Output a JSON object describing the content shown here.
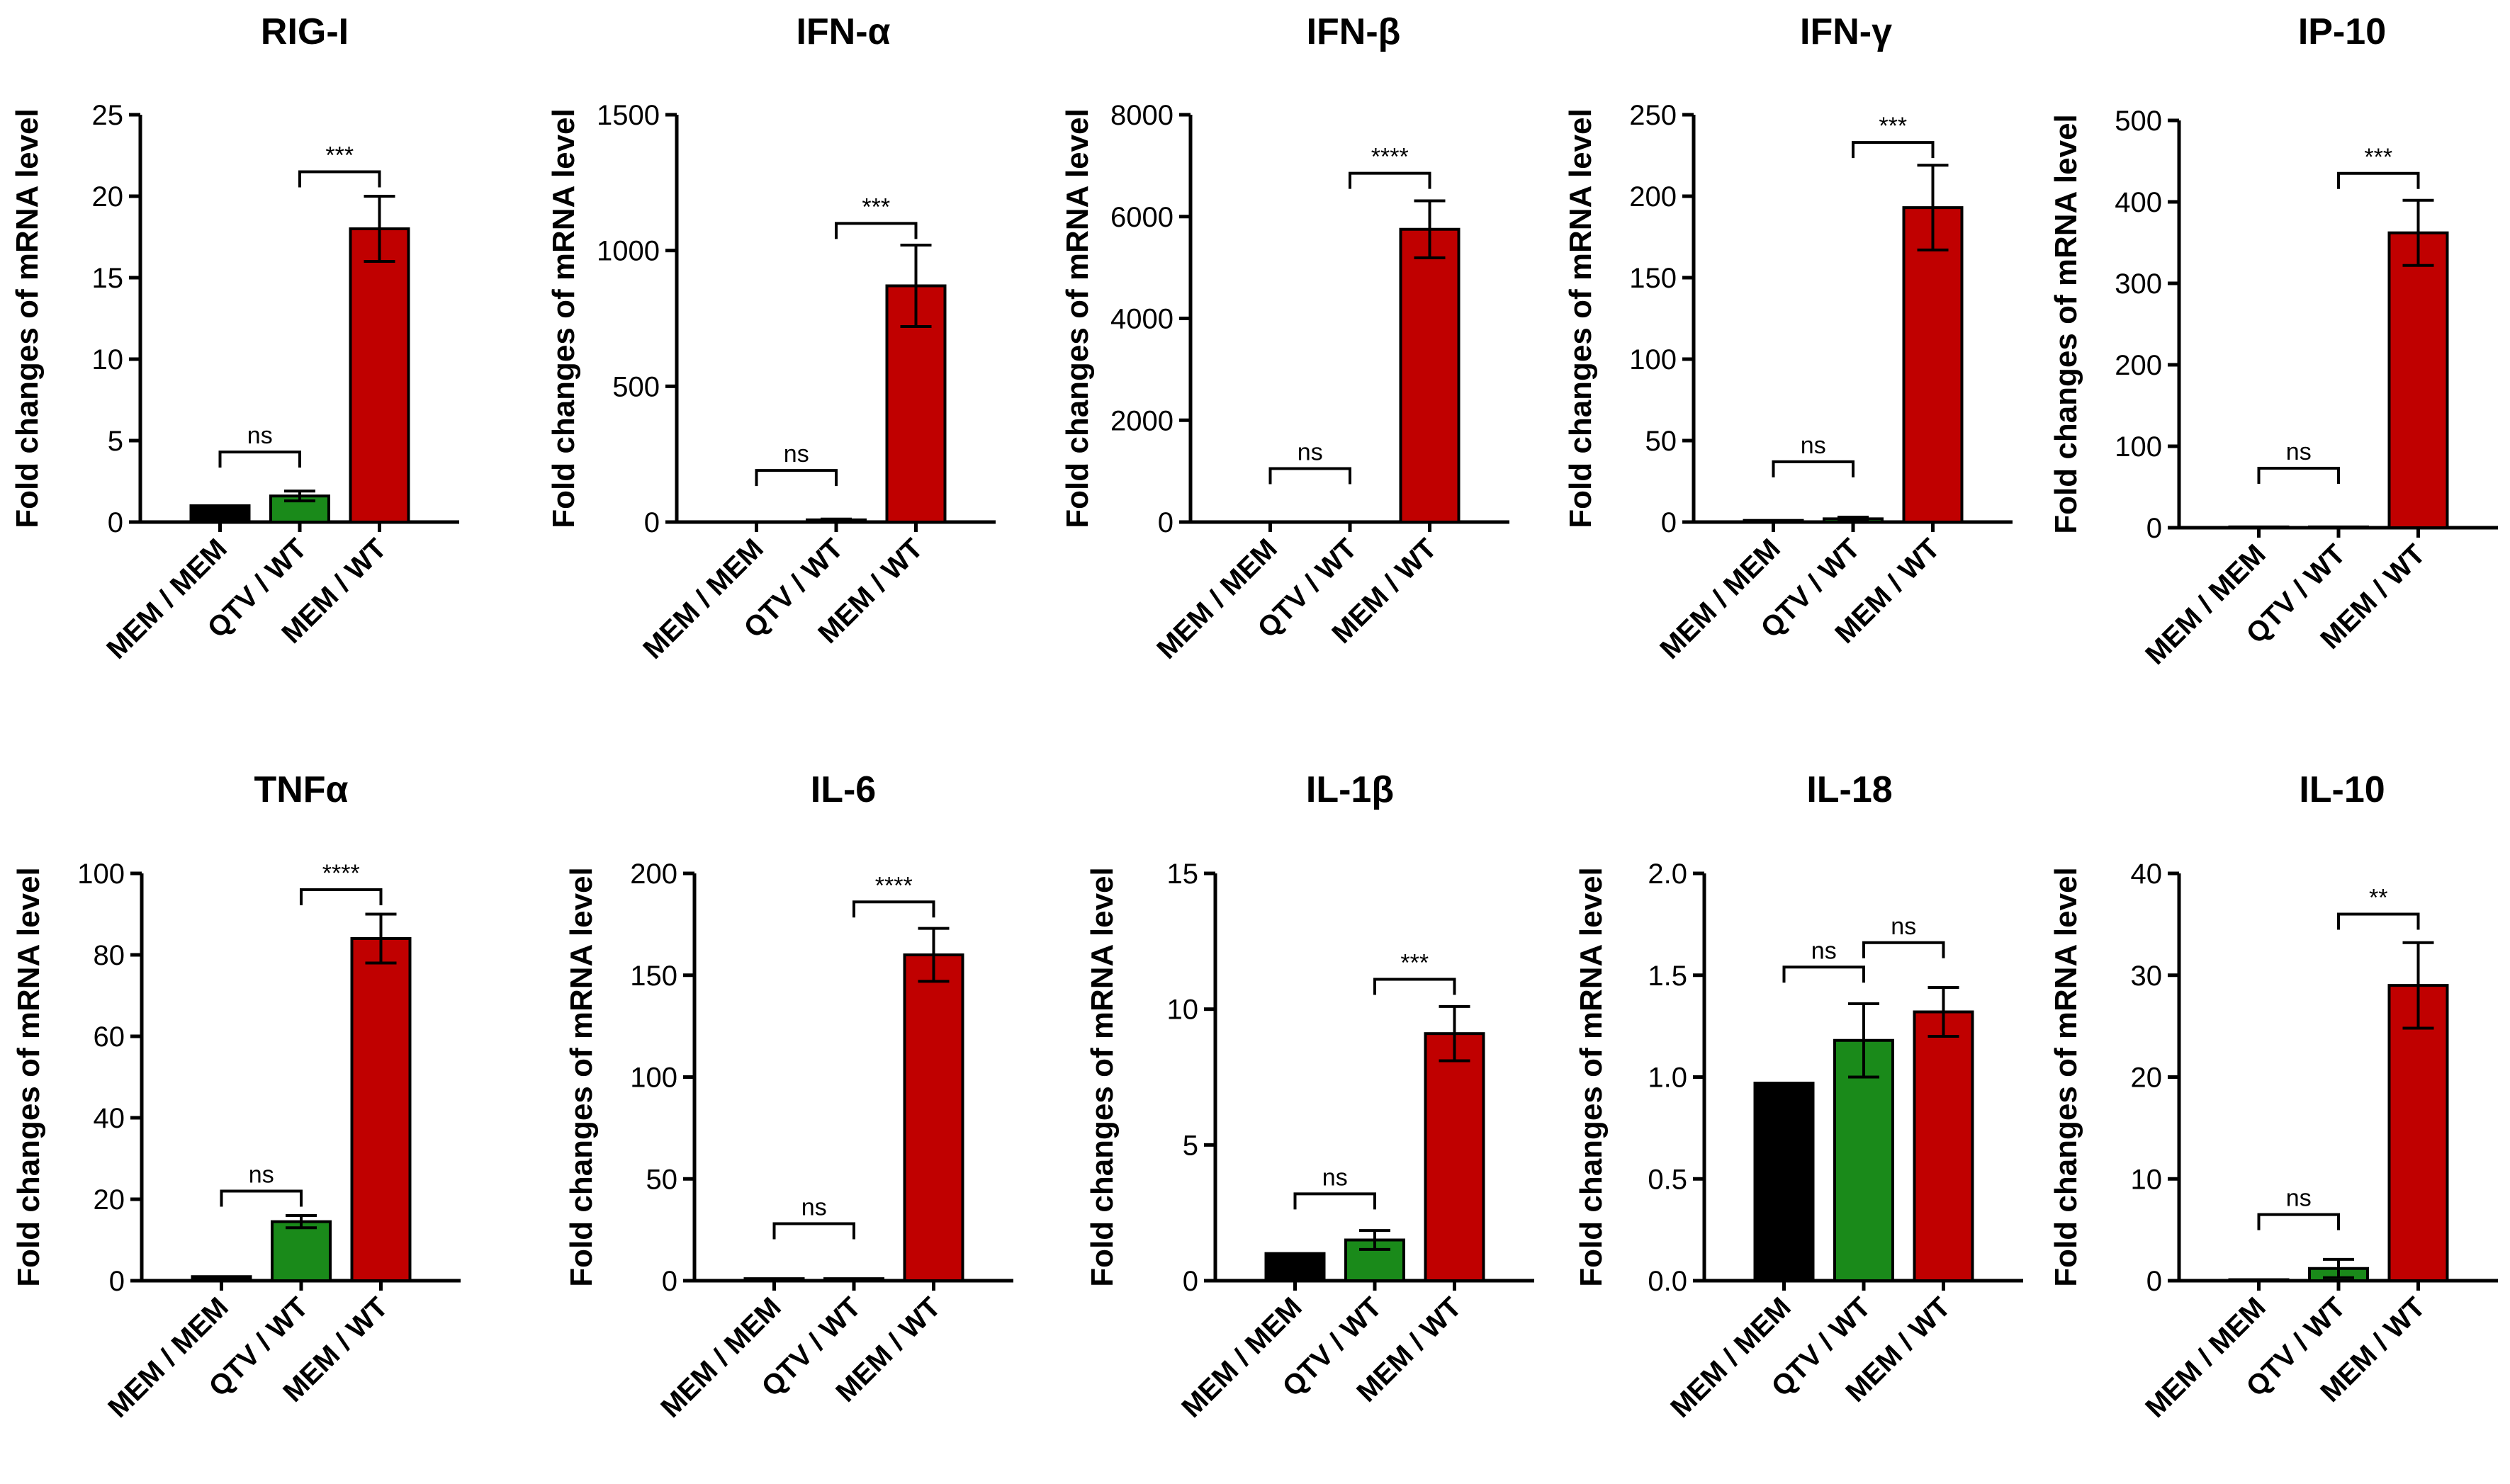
{
  "figure": {
    "colors": {
      "black": "#000000",
      "green": "#1a8a1a",
      "red": "#c00000"
    },
    "chart_data": [
      {
        "type": "bar",
        "title": "RIG-I",
        "ylabel": "Fold changes of mRNA level",
        "categories": [
          "MEM / MEM",
          "QTV / WT",
          "MEM / WT"
        ],
        "values": [
          1.0,
          1.6,
          18.0
        ],
        "errors": [
          0.0,
          0.3,
          2.0
        ],
        "bar_colors": [
          "black",
          "green",
          "red"
        ],
        "ylim": [
          0,
          25
        ],
        "yticks": [
          0,
          5,
          10,
          15,
          20,
          25
        ],
        "ytick_labels": [
          "0",
          "5",
          "10",
          "15",
          "20",
          "25"
        ],
        "significance": [
          {
            "from": 0,
            "to": 1,
            "label": "ns",
            "y": 4.3
          },
          {
            "from": 1,
            "to": 2,
            "label": "***",
            "y": 21.5
          }
        ]
      },
      {
        "type": "bar",
        "title": "IFN-α",
        "ylabel": "Fold changes of mRNA level",
        "categories": [
          "MEM / MEM",
          "QTV / WT",
          "MEM / WT"
        ],
        "values": [
          1,
          8,
          870
        ],
        "errors": [
          0,
          3,
          150
        ],
        "bar_colors": [
          "black",
          "green",
          "red"
        ],
        "ylim": [
          0,
          1500
        ],
        "yticks": [
          0,
          500,
          1000,
          1500
        ],
        "ytick_labels": [
          "0",
          "500",
          "1000",
          "1500"
        ],
        "significance": [
          {
            "from": 0,
            "to": 1,
            "label": "ns",
            "y": 190
          },
          {
            "from": 1,
            "to": 2,
            "label": "***",
            "y": 1100
          }
        ]
      },
      {
        "type": "bar",
        "title": "IFN-β",
        "ylabel": "Fold changes of mRNA level",
        "categories": [
          "MEM / MEM",
          "QTV / WT",
          "MEM / WT"
        ],
        "values": [
          1,
          5,
          5750
        ],
        "errors": [
          0,
          2,
          560
        ],
        "bar_colors": [
          "black",
          "green",
          "red"
        ],
        "ylim": [
          0,
          8000
        ],
        "yticks": [
          0,
          2000,
          4000,
          6000,
          8000
        ],
        "ytick_labels": [
          "0",
          "2000",
          "4000",
          "6000",
          "8000"
        ],
        "significance": [
          {
            "from": 0,
            "to": 1,
            "label": "ns",
            "y": 1050
          },
          {
            "from": 1,
            "to": 2,
            "label": "****",
            "y": 6850
          }
        ]
      },
      {
        "type": "bar",
        "title": "IFN-γ",
        "ylabel": "Fold changes of mRNA level",
        "categories": [
          "MEM / MEM",
          "QTV / WT",
          "MEM / WT"
        ],
        "values": [
          1,
          2,
          193
        ],
        "errors": [
          0,
          1,
          26
        ],
        "bar_colors": [
          "black",
          "green",
          "red"
        ],
        "ylim": [
          0,
          250
        ],
        "yticks": [
          0,
          50,
          100,
          150,
          200,
          250
        ],
        "ytick_labels": [
          "0",
          "50",
          "100",
          "150",
          "200",
          "250"
        ],
        "significance": [
          {
            "from": 0,
            "to": 1,
            "label": "ns",
            "y": 37
          },
          {
            "from": 1,
            "to": 2,
            "label": "***",
            "y": 233
          }
        ]
      },
      {
        "type": "bar",
        "title": "IP-10",
        "ylabel": "Fold changes of mRNA level",
        "categories": [
          "MEM / MEM",
          "QTV / WT",
          "MEM / WT"
        ],
        "values": [
          1,
          1,
          362
        ],
        "errors": [
          0,
          0,
          40
        ],
        "bar_colors": [
          "black",
          "green",
          "red"
        ],
        "ylim": [
          0,
          500
        ],
        "yticks": [
          0,
          100,
          200,
          300,
          400,
          500
        ],
        "ytick_labels": [
          "0",
          "100",
          "200",
          "300",
          "400",
          "500"
        ],
        "significance": [
          {
            "from": 0,
            "to": 1,
            "label": "ns",
            "y": 73
          },
          {
            "from": 1,
            "to": 2,
            "label": "***",
            "y": 435
          }
        ]
      },
      {
        "type": "bar",
        "title": "TNFα",
        "ylabel": "Fold changes of mRNA level",
        "categories": [
          "MEM / MEM",
          "QTV / WT",
          "MEM / WT"
        ],
        "values": [
          1,
          14.5,
          84
        ],
        "errors": [
          0,
          1.5,
          6
        ],
        "bar_colors": [
          "black",
          "green",
          "red"
        ],
        "ylim": [
          0,
          100
        ],
        "yticks": [
          0,
          20,
          40,
          60,
          80,
          100
        ],
        "ytick_labels": [
          "0",
          "20",
          "40",
          "60",
          "80",
          "100"
        ],
        "significance": [
          {
            "from": 0,
            "to": 1,
            "label": "ns",
            "y": 22
          },
          {
            "from": 1,
            "to": 2,
            "label": "****",
            "y": 96
          }
        ]
      },
      {
        "type": "bar",
        "title": "IL-6",
        "ylabel": "Fold changes of mRNA level",
        "categories": [
          "MEM / MEM",
          "QTV / WT",
          "MEM / WT"
        ],
        "values": [
          1,
          1,
          160
        ],
        "errors": [
          0,
          0,
          13
        ],
        "bar_colors": [
          "black",
          "green",
          "red"
        ],
        "ylim": [
          0,
          200
        ],
        "yticks": [
          0,
          50,
          100,
          150,
          200
        ],
        "ytick_labels": [
          "0",
          "50",
          "100",
          "150",
          "200"
        ],
        "significance": [
          {
            "from": 0,
            "to": 1,
            "label": "ns",
            "y": 28
          },
          {
            "from": 1,
            "to": 2,
            "label": "****",
            "y": 186
          }
        ]
      },
      {
        "type": "bar",
        "title": "IL-1β",
        "ylabel": "Fold changes of mRNA level",
        "categories": [
          "MEM / MEM",
          "QTV / WT",
          "MEM / WT"
        ],
        "values": [
          1.0,
          1.5,
          9.1
        ],
        "errors": [
          0.0,
          0.35,
          1.0
        ],
        "bar_colors": [
          "black",
          "green",
          "red"
        ],
        "ylim": [
          0,
          15
        ],
        "yticks": [
          0,
          5,
          10,
          15
        ],
        "ytick_labels": [
          "0",
          "5",
          "10",
          "15"
        ],
        "significance": [
          {
            "from": 0,
            "to": 1,
            "label": "ns",
            "y": 3.2
          },
          {
            "from": 1,
            "to": 2,
            "label": "***",
            "y": 11.1
          }
        ]
      },
      {
        "type": "bar",
        "title": "IL-18",
        "ylabel": "Fold changes of mRNA level",
        "categories": [
          "MEM / MEM",
          "QTV / WT",
          "MEM / WT"
        ],
        "values": [
          0.97,
          1.18,
          1.32
        ],
        "errors": [
          0.0,
          0.18,
          0.12
        ],
        "bar_colors": [
          "black",
          "green",
          "red"
        ],
        "ylim": [
          0,
          2.0
        ],
        "yticks": [
          0,
          0.5,
          1.0,
          1.5,
          2.0
        ],
        "ytick_labels": [
          "0.0",
          "0.5",
          "1.0",
          "1.5",
          "2.0"
        ],
        "significance": [
          {
            "from": 0,
            "to": 1,
            "label": "ns",
            "y": 1.54
          },
          {
            "from": 1,
            "to": 2,
            "label": "ns",
            "y": 1.66
          }
        ]
      },
      {
        "type": "bar",
        "title": "IL-10",
        "ylabel": "Fold changes of mRNA level",
        "categories": [
          "MEM / MEM",
          "QTV / WT",
          "MEM / WT"
        ],
        "values": [
          0.1,
          1.2,
          29
        ],
        "errors": [
          0,
          0.9,
          4.2
        ],
        "bar_colors": [
          "black",
          "green",
          "red"
        ],
        "ylim": [
          0,
          40
        ],
        "yticks": [
          0,
          10,
          20,
          30,
          40
        ],
        "ytick_labels": [
          "0",
          "10",
          "20",
          "30",
          "40"
        ],
        "significance": [
          {
            "from": 0,
            "to": 1,
            "label": "ns",
            "y": 6.5
          },
          {
            "from": 1,
            "to": 2,
            "label": "**",
            "y": 36
          }
        ]
      }
    ]
  }
}
